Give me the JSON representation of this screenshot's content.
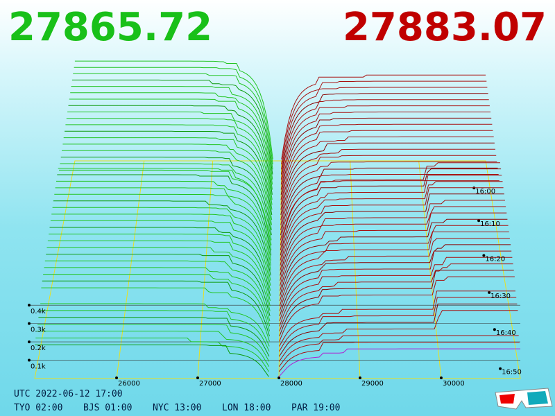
{
  "header": {
    "bid": "27865.72",
    "ask": "27883.07"
  },
  "price_axis": {
    "labels": [
      "26000",
      "27000",
      "28000",
      "29000",
      "30000"
    ]
  },
  "depth_axis": {
    "labels": [
      "0.1k",
      "0.2k",
      "0.3k",
      "0.4k"
    ]
  },
  "time_axis": {
    "labels": [
      "16:00",
      "16:10",
      "16:20",
      "16:30",
      "16:40",
      "16:50"
    ]
  },
  "footer": {
    "utc": "UTC 2022-06-12 17:00",
    "zones": [
      "TYO 02:00",
      "BJS 01:00",
      "NYC 13:00",
      "LON 18:00",
      "PAR 19:00"
    ]
  }
}
